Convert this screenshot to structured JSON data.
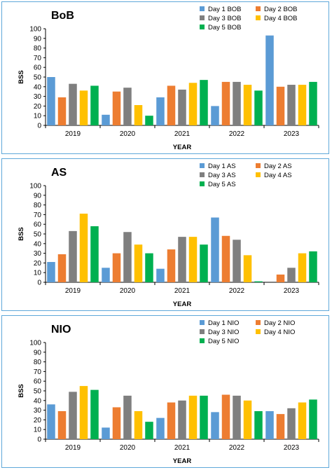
{
  "chart_data": [
    {
      "type": "bar",
      "title": "BoB",
      "xlabel": "YEAR",
      "ylabel": "BSS",
      "ylim": [
        0,
        100
      ],
      "yticks": [
        0,
        10,
        20,
        30,
        40,
        50,
        60,
        70,
        80,
        90,
        100
      ],
      "grid": false,
      "legend_position": "top-right",
      "categories": [
        "2019",
        "2020",
        "2021",
        "2022",
        "2023"
      ],
      "series": [
        {
          "name": "Day 1 BOB",
          "color": "#5b9bd5",
          "values": [
            50,
            11,
            29,
            20,
            93
          ]
        },
        {
          "name": "Day 2 BOB",
          "color": "#ed7d31",
          "values": [
            29,
            35,
            41,
            45,
            40
          ]
        },
        {
          "name": "Day 3 BOB",
          "color": "#7f7f7f",
          "values": [
            43,
            39,
            37,
            45,
            42
          ]
        },
        {
          "name": "Day 4 BOB",
          "color": "#ffc000",
          "values": [
            36,
            21,
            44,
            42,
            42
          ]
        },
        {
          "name": "Day 5 BOB",
          "color": "#00b050",
          "values": [
            41,
            10,
            47,
            36,
            45
          ]
        }
      ]
    },
    {
      "type": "bar",
      "title": "AS",
      "xlabel": "YEAR",
      "ylabel": "BSS",
      "ylim": [
        0,
        100
      ],
      "yticks": [
        0,
        10,
        20,
        30,
        40,
        50,
        60,
        70,
        80,
        90,
        100
      ],
      "grid": false,
      "legend_position": "top-right",
      "categories": [
        "2019",
        "2020",
        "2021",
        "2022",
        "2023"
      ],
      "series": [
        {
          "name": "Day 1 AS",
          "color": "#5b9bd5",
          "values": [
            21,
            15,
            14,
            67,
            0
          ]
        },
        {
          "name": "Day 2 AS",
          "color": "#ed7d31",
          "values": [
            29,
            30,
            34,
            48,
            8
          ]
        },
        {
          "name": "Day 3 AS",
          "color": "#7f7f7f",
          "values": [
            53,
            52,
            47,
            44,
            15
          ]
        },
        {
          "name": "Day 4 AS",
          "color": "#ffc000",
          "values": [
            71,
            39,
            47,
            28,
            30
          ]
        },
        {
          "name": "Day 5 AS",
          "color": "#00b050",
          "values": [
            58,
            30,
            39,
            1,
            32
          ]
        }
      ]
    },
    {
      "type": "bar",
      "title": "NIO",
      "xlabel": "YEAR",
      "ylabel": "BSS",
      "ylim": [
        0,
        100
      ],
      "yticks": [
        0,
        10,
        20,
        30,
        40,
        50,
        60,
        70,
        80,
        90,
        100
      ],
      "grid": false,
      "legend_position": "top-right",
      "categories": [
        "2019",
        "2020",
        "2021",
        "2022",
        "2023"
      ],
      "series": [
        {
          "name": "Day 1 NIO",
          "color": "#5b9bd5",
          "values": [
            36,
            12,
            22,
            28,
            29
          ]
        },
        {
          "name": "Day 2 NIO",
          "color": "#ed7d31",
          "values": [
            29,
            33,
            38,
            46,
            26
          ]
        },
        {
          "name": "Day 3 NIO",
          "color": "#7f7f7f",
          "values": [
            49,
            45,
            40,
            45,
            32
          ]
        },
        {
          "name": "Day 4 NIO",
          "color": "#ffc000",
          "values": [
            55,
            29,
            45,
            40,
            38
          ]
        },
        {
          "name": "Day 5 NIO",
          "color": "#00b050",
          "values": [
            51,
            18,
            45,
            29,
            41
          ]
        }
      ]
    }
  ]
}
